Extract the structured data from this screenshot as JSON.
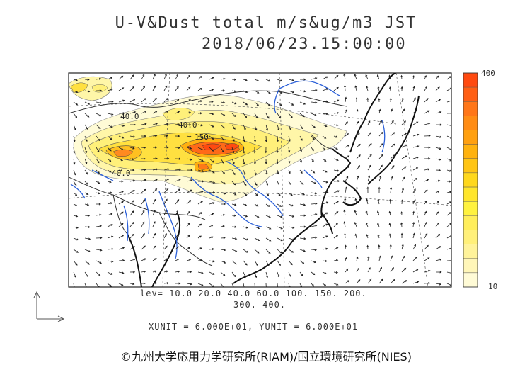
{
  "title": {
    "line1": "U-V&Dust total m/s&ug/m3 JST",
    "line2": "2018/06/23.15:00:00"
  },
  "levels": {
    "line1": "lev= 10.0 20.0 40.0 60.0 100. 150. 200.",
    "line2": "300. 400."
  },
  "units": "XUNIT = 6.000E+01, YUNIT = 6.000E+01",
  "copyright": "©九州大学応用力学研究所(RIAM)/国立環境研究所(NIES)",
  "colorbar": {
    "max_label": "400",
    "min_label": "10",
    "colors": [
      "#fffbd6",
      "#fff6b8",
      "#fff39a",
      "#fff07a",
      "#ffee5a",
      "#fff23e",
      "#ffe62c",
      "#ffd81c",
      "#ffc514",
      "#ffb20e",
      "#ffa010",
      "#ff8c14",
      "#ff7618",
      "#ff5f14",
      "#ff4a10"
    ]
  },
  "contour_labels": [
    "40.0",
    "40.0",
    "40.0",
    "150"
  ],
  "colors": {
    "coast": "#111111",
    "river": "#2a5fd8",
    "border": "#333333",
    "dust_low": "#fffbd6",
    "dust_high": "#ff5a14"
  }
}
